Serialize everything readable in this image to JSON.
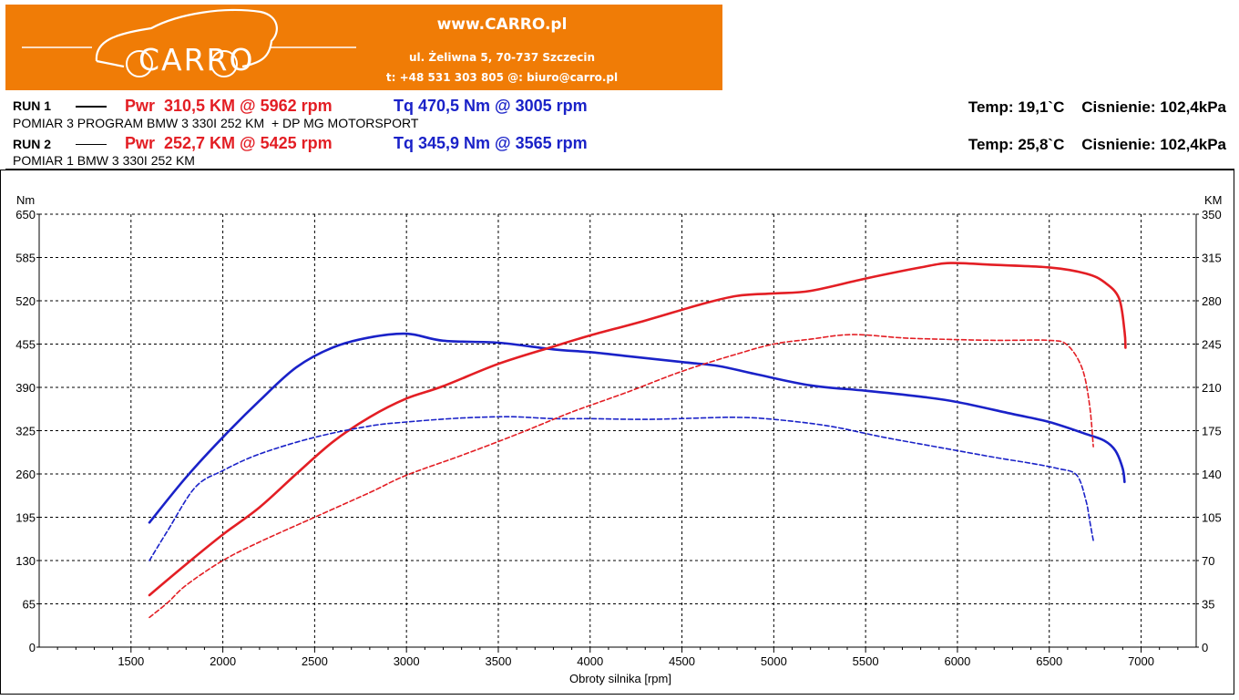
{
  "header": {
    "logo_text": "CARRO",
    "website": "www.CARRO.pl",
    "address": "ul. Żeliwna 5, 70-737 Szczecin",
    "contact": "t: +48 531 303 805   @: biuro@carro.pl",
    "brand_color": "#f07c06"
  },
  "runs": [
    {
      "label": "RUN 1",
      "power": "Pwr  310,5 KM @ 5962 rpm",
      "torque": "Tq 470,5 Nm @ 3005 rpm",
      "description": "POMIAR 3 PROGRAM BMW 3 330I 252 KM  + DP MG MOTORSPORT",
      "conditions": "Temp: 19,1`C    Cisnienie: 102,4kPa",
      "line_style": "solid"
    },
    {
      "label": "RUN 2",
      "power": "Pwr  252,7 KM @ 5425 rpm",
      "torque": "Tq 345,9 Nm @ 3565 rpm",
      "description": "POMIAR 1 BMW 3 330I 252 KM",
      "conditions": "Temp: 25,8`C    Cisnienie: 102,4kPa",
      "line_style": "dashed"
    }
  ],
  "chart_data": {
    "type": "line",
    "xlabel": "Obroty silnika [rpm]",
    "ylabel": "Nm",
    "y2label": "KM",
    "xlim": [
      1000,
      7300
    ],
    "ylim": [
      0,
      650
    ],
    "y2lim": [
      0,
      350
    ],
    "x_ticks": [
      1500,
      2000,
      2500,
      3000,
      3500,
      4000,
      4500,
      5000,
      5500,
      6000,
      6500,
      7000
    ],
    "y_ticks": [
      0,
      65,
      130,
      195,
      260,
      325,
      390,
      455,
      520,
      585,
      650
    ],
    "y2_ticks": [
      0,
      35,
      70,
      105,
      140,
      175,
      210,
      245,
      280,
      315,
      350
    ],
    "grid": true,
    "colors": {
      "power": "#e31e24",
      "torque": "#1a22c8"
    },
    "series": [
      {
        "run": "RUN 1",
        "quantity": "torque",
        "axis": "left",
        "style": "solid",
        "points": [
          [
            1600,
            187
          ],
          [
            1800,
            255
          ],
          [
            2000,
            315
          ],
          [
            2200,
            370
          ],
          [
            2400,
            420
          ],
          [
            2600,
            450
          ],
          [
            2800,
            465
          ],
          [
            3005,
            470.5
          ],
          [
            3200,
            460
          ],
          [
            3500,
            457
          ],
          [
            3800,
            447
          ],
          [
            4000,
            443
          ],
          [
            4200,
            437
          ],
          [
            4500,
            428
          ],
          [
            4700,
            422
          ],
          [
            4900,
            410
          ],
          [
            5200,
            393
          ],
          [
            5500,
            385
          ],
          [
            5800,
            376
          ],
          [
            6000,
            368
          ],
          [
            6300,
            350
          ],
          [
            6500,
            338
          ],
          [
            6700,
            320
          ],
          [
            6800,
            310
          ],
          [
            6860,
            295
          ],
          [
            6900,
            268
          ],
          [
            6910,
            248
          ]
        ]
      },
      {
        "run": "RUN 1",
        "quantity": "power",
        "axis": "right",
        "style": "solid",
        "points": [
          [
            1600,
            42
          ],
          [
            1800,
            67
          ],
          [
            2000,
            91
          ],
          [
            2200,
            113
          ],
          [
            2400,
            140
          ],
          [
            2600,
            166
          ],
          [
            2800,
            186
          ],
          [
            3000,
            201
          ],
          [
            3200,
            211
          ],
          [
            3500,
            229
          ],
          [
            3800,
            243
          ],
          [
            4000,
            252
          ],
          [
            4300,
            264
          ],
          [
            4600,
            277
          ],
          [
            4800,
            284
          ],
          [
            5000,
            286
          ],
          [
            5200,
            288
          ],
          [
            5500,
            298
          ],
          [
            5800,
            307
          ],
          [
            5962,
            310.5
          ],
          [
            6200,
            309
          ],
          [
            6500,
            307
          ],
          [
            6700,
            302
          ],
          [
            6800,
            295
          ],
          [
            6880,
            282
          ],
          [
            6910,
            255
          ],
          [
            6915,
            242
          ]
        ]
      },
      {
        "run": "RUN 2",
        "quantity": "torque",
        "axis": "left",
        "style": "dashed",
        "points": [
          [
            1600,
            130
          ],
          [
            1700,
            175
          ],
          [
            1850,
            240
          ],
          [
            2000,
            265
          ],
          [
            2200,
            290
          ],
          [
            2500,
            315
          ],
          [
            2800,
            332
          ],
          [
            3000,
            338
          ],
          [
            3300,
            344
          ],
          [
            3565,
            345.9
          ],
          [
            3800,
            343
          ],
          [
            4000,
            343
          ],
          [
            4300,
            342
          ],
          [
            4600,
            344
          ],
          [
            4800,
            345
          ],
          [
            5000,
            342
          ],
          [
            5300,
            332
          ],
          [
            5600,
            315
          ],
          [
            5900,
            300
          ],
          [
            6200,
            285
          ],
          [
            6400,
            276
          ],
          [
            6550,
            268
          ],
          [
            6650,
            258
          ],
          [
            6700,
            220
          ],
          [
            6720,
            190
          ],
          [
            6740,
            160
          ]
        ]
      },
      {
        "run": "RUN 2",
        "quantity": "power",
        "axis": "right",
        "style": "dashed",
        "points": [
          [
            1600,
            24
          ],
          [
            1700,
            36
          ],
          [
            1800,
            50
          ],
          [
            2000,
            70
          ],
          [
            2200,
            85
          ],
          [
            2500,
            105
          ],
          [
            2800,
            125
          ],
          [
            3000,
            139
          ],
          [
            3300,
            155
          ],
          [
            3600,
            172
          ],
          [
            3900,
            190
          ],
          [
            4200,
            206
          ],
          [
            4500,
            223
          ],
          [
            4800,
            237
          ],
          [
            5000,
            245
          ],
          [
            5200,
            249
          ],
          [
            5425,
            252.7
          ],
          [
            5700,
            250
          ],
          [
            5900,
            249
          ],
          [
            6200,
            248
          ],
          [
            6500,
            248
          ],
          [
            6600,
            244
          ],
          [
            6680,
            225
          ],
          [
            6720,
            195
          ],
          [
            6740,
            162
          ]
        ]
      }
    ]
  }
}
